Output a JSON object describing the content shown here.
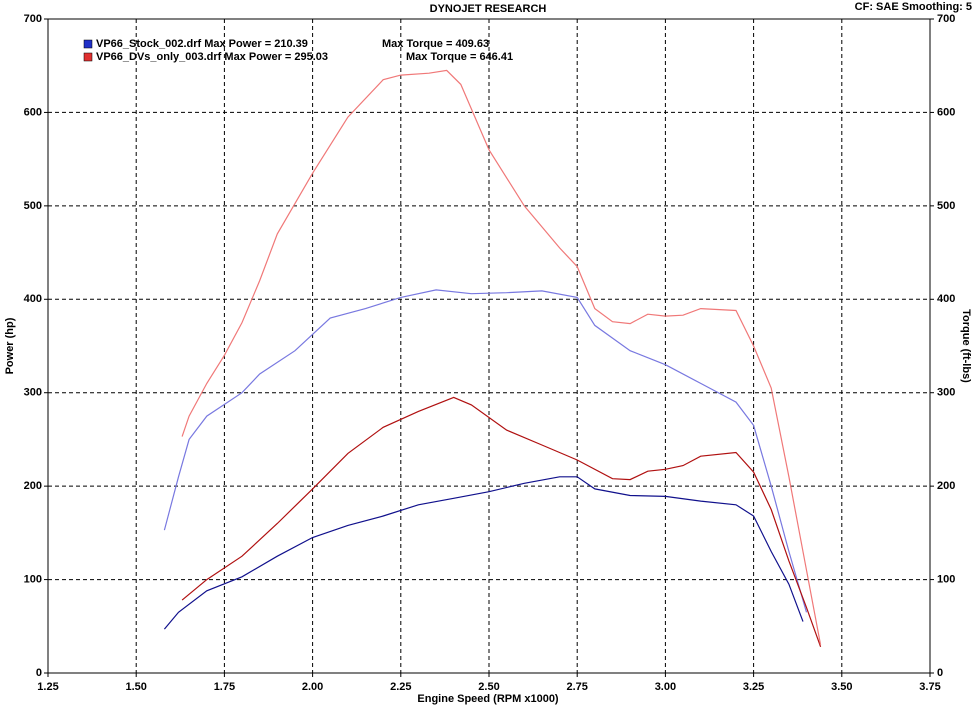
{
  "chart_data": {
    "type": "line",
    "title": "DYNOJET RESEARCH",
    "subtitle": "CF: SAE  Smoothing: 5",
    "x_label": "Engine Speed (RPM x1000)",
    "y_label": "Power (hp)",
    "y2_label": "Torque (ft-lbs)",
    "legend": [
      {
        "text": "VP66_Stock_002.drf Max Power = 210.39",
        "torque_text": "Max Torque = 409.63",
        "color": "#2030c8"
      },
      {
        "text": "VP66_DVs_only_003.drf Max Power = 295.03",
        "torque_text": "Max Torque = 646.41",
        "color": "#e03030"
      }
    ],
    "xlim": [
      1.25,
      3.75
    ],
    "xticks": [
      1.25,
      {
        "value": 1.5,
        "label": "1.50"
      },
      1.75,
      {
        "value": 2,
        "label": "2.00"
      },
      2.25,
      {
        "value": 2.5,
        "label": "2.50"
      },
      2.75,
      {
        "value": 3,
        "label": "3.00"
      },
      3.25,
      {
        "value": 3.5,
        "label": "3.50"
      },
      3.75
    ],
    "ylim": [
      0,
      700
    ],
    "yticks": [
      0,
      100,
      200,
      300,
      400,
      500,
      600,
      700
    ],
    "y2lim": [
      0,
      700
    ],
    "y2ticks": [
      0,
      100,
      200,
      300,
      400,
      500,
      600,
      700
    ],
    "grid": true,
    "series": [
      {
        "color": "#10108c",
        "axis": "y",
        "x": [
          1.58,
          1.62,
          1.7,
          1.8,
          1.9,
          2.0,
          2.1,
          2.2,
          2.3,
          2.4,
          2.5,
          2.6,
          2.7,
          2.75,
          2.8,
          2.9,
          3.0,
          3.1,
          3.2,
          3.25,
          3.3,
          3.35,
          3.39
        ],
        "values": [
          47,
          65,
          88,
          103,
          125,
          145,
          158,
          168,
          180,
          187,
          194,
          203,
          210,
          210,
          197,
          190,
          189,
          184,
          180,
          168,
          130,
          95,
          55
        ]
      },
      {
        "color": "#7878e0",
        "axis": "y2",
        "x": [
          1.58,
          1.62,
          1.65,
          1.7,
          1.8,
          1.85,
          1.95,
          2.05,
          2.15,
          2.25,
          2.35,
          2.45,
          2.55,
          2.65,
          2.75,
          2.8,
          2.9,
          3.0,
          3.1,
          3.2,
          3.25,
          3.3,
          3.35,
          3.4
        ],
        "values": [
          153,
          210,
          250,
          275,
          300,
          320,
          345,
          380,
          390,
          402,
          410,
          406,
          407,
          409,
          402,
          372,
          345,
          330,
          310,
          290,
          265,
          200,
          130,
          65
        ]
      },
      {
        "color": "#b01010",
        "axis": "y",
        "x": [
          1.63,
          1.7,
          1.8,
          1.9,
          2.0,
          2.1,
          2.2,
          2.3,
          2.4,
          2.45,
          2.55,
          2.65,
          2.75,
          2.85,
          2.9,
          2.95,
          3.0,
          3.05,
          3.1,
          3.2,
          3.25,
          3.3,
          3.35,
          3.4,
          3.44
        ],
        "values": [
          78,
          100,
          125,
          160,
          197,
          235,
          263,
          280,
          295,
          287,
          260,
          244,
          228,
          208,
          207,
          216,
          218,
          222,
          232,
          236,
          215,
          175,
          120,
          70,
          28
        ]
      },
      {
        "color": "#f07878",
        "axis": "y2",
        "x": [
          1.63,
          1.65,
          1.7,
          1.75,
          1.8,
          1.85,
          1.9,
          2.0,
          2.1,
          2.2,
          2.25,
          2.33,
          2.38,
          2.42,
          2.5,
          2.6,
          2.7,
          2.75,
          2.8,
          2.85,
          2.9,
          2.95,
          3.0,
          3.05,
          3.1,
          3.2,
          3.25,
          3.3,
          3.35,
          3.4,
          3.44
        ],
        "values": [
          253,
          275,
          310,
          340,
          375,
          420,
          470,
          535,
          595,
          635,
          640,
          642,
          645,
          630,
          560,
          500,
          455,
          435,
          390,
          376,
          374,
          384,
          382,
          383,
          390,
          388,
          350,
          305,
          210,
          110,
          30
        ]
      }
    ]
  }
}
